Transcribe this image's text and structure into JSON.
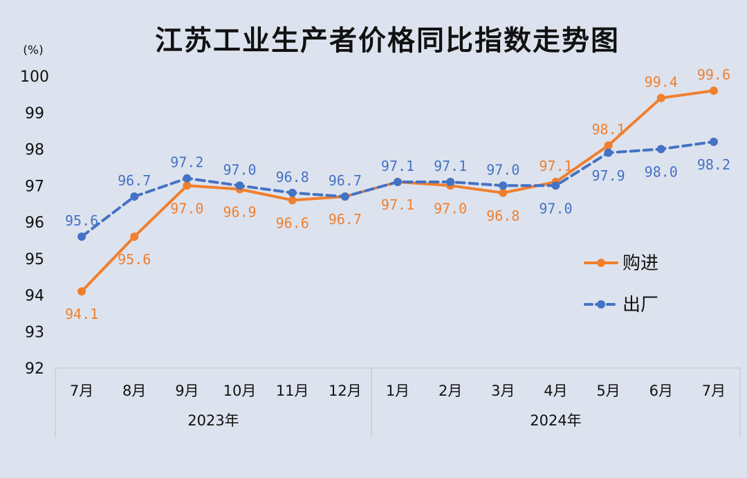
{
  "chart_data": {
    "type": "line",
    "title": "江苏工业生产者价格同比指数走势图",
    "unit_label": "(%)",
    "ylim": [
      92,
      100
    ],
    "yticks": [
      "92",
      "93",
      "94",
      "95",
      "96",
      "97",
      "98",
      "99",
      "100"
    ],
    "categories": [
      "7月",
      "8月",
      "9月",
      "10月",
      "11月",
      "12月",
      "1月",
      "2月",
      "3月",
      "4月",
      "5月",
      "6月",
      "7月"
    ],
    "year_groups": [
      {
        "label": "2023年",
        "count": 6
      },
      {
        "label": "2024年",
        "count": 7
      }
    ],
    "series": [
      {
        "name": "购进",
        "color": "#f07f2e",
        "dash": false,
        "values": [
          94.1,
          95.6,
          97.0,
          96.9,
          96.6,
          96.7,
          97.1,
          97.0,
          96.8,
          97.1,
          98.1,
          99.4,
          99.6
        ],
        "labels": [
          "94.1",
          "95.6",
          "97.0",
          "96.9",
          "96.6",
          "96.7",
          "97.1",
          "97.0",
          "96.8",
          "97.1",
          "98.1",
          "99.4",
          "99.6"
        ]
      },
      {
        "name": "出厂",
        "color": "#4472c4",
        "dash": true,
        "values": [
          95.6,
          96.7,
          97.2,
          97.0,
          96.8,
          96.7,
          97.1,
          97.1,
          97.0,
          97.0,
          97.9,
          98.0,
          98.2
        ],
        "labels": [
          "95.6",
          "96.7",
          "97.2",
          "97.0",
          "96.8",
          "96.7",
          "97.1",
          "97.1",
          "97.0",
          "97.0",
          "97.9",
          "98.0",
          "98.2"
        ]
      }
    ],
    "grid": false,
    "legend_position": "right-middle"
  }
}
